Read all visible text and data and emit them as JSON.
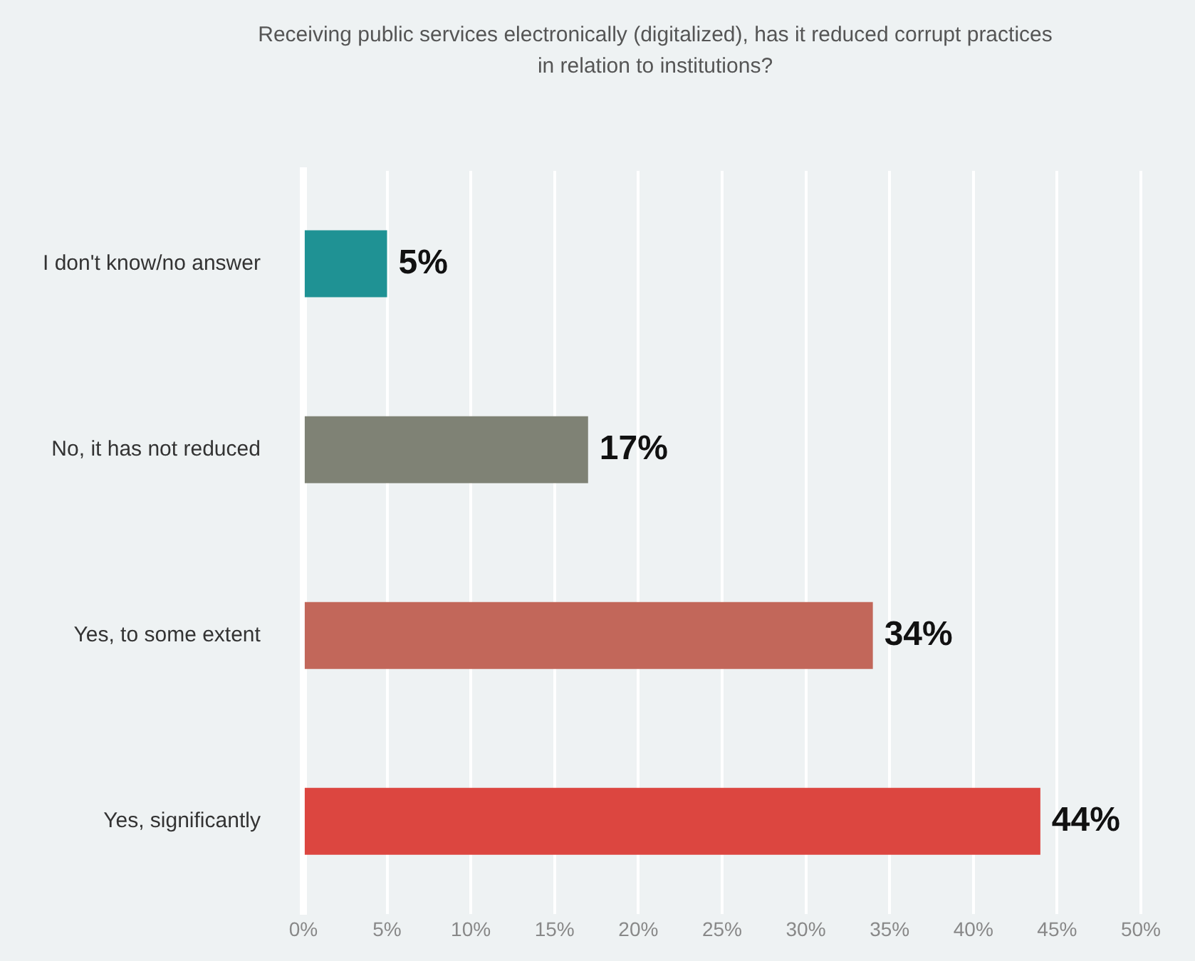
{
  "chart_data": {
    "type": "bar",
    "orientation": "horizontal",
    "title": "Receiving public services electronically (digitalized), has it reduced corrupt practices in relation to institutions?",
    "categories": [
      "I don't know/no answer",
      "No, it has not reduced",
      "Yes, to some extent",
      "Yes, significantly"
    ],
    "values": [
      5,
      17,
      34,
      44
    ],
    "colors": [
      "#1f9294",
      "#7f8275",
      "#c2675a",
      "#dc4640"
    ],
    "value_labels": [
      "5%",
      "17%",
      "34%",
      "44%"
    ],
    "xlim": [
      0,
      50
    ],
    "xticks": [
      {
        "value": 0,
        "label": "0%"
      },
      {
        "value": 5,
        "label": "5%"
      },
      {
        "value": 10,
        "label": "10%"
      },
      {
        "value": 15,
        "label": "15%"
      },
      {
        "value": 20,
        "label": "20%"
      },
      {
        "value": 25,
        "label": "25%"
      },
      {
        "value": 30,
        "label": "30%"
      },
      {
        "value": 35,
        "label": "35%"
      },
      {
        "value": 40,
        "label": "40%"
      },
      {
        "value": 45,
        "label": "45%"
      },
      {
        "value": 50,
        "label": "50%"
      }
    ],
    "grid": "x",
    "legend": false
  }
}
